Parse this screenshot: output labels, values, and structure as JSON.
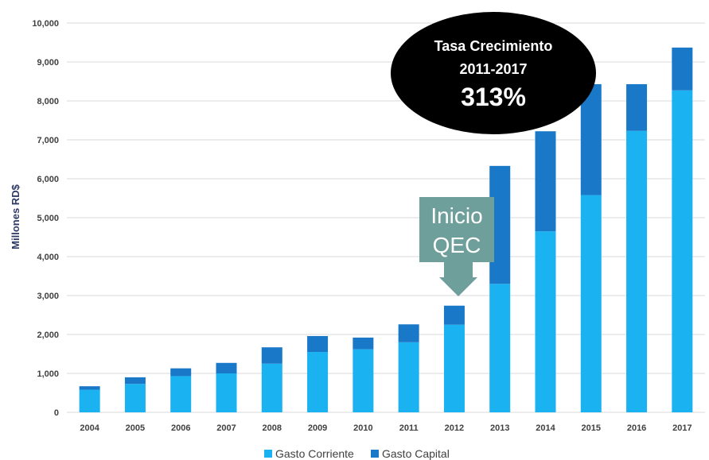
{
  "chart_data": {
    "type": "bar",
    "stacked": true,
    "ylabel": "Millones RD$",
    "ylim": [
      0,
      10000
    ],
    "yticks": [
      "0",
      "1,000",
      "2,000",
      "3,000",
      "4,000",
      "5,000",
      "6,000",
      "7,000",
      "8,000",
      "9,000",
      "10,000"
    ],
    "ytick_values": [
      0,
      1000,
      2000,
      3000,
      4000,
      5000,
      6000,
      7000,
      8000,
      9000,
      10000
    ],
    "grid": true,
    "legend_position": "bottom",
    "categories": [
      "2004",
      "2005",
      "2006",
      "2007",
      "2008",
      "2009",
      "2010",
      "2011",
      "2012",
      "2013",
      "2014",
      "2015",
      "2016",
      "2017"
    ],
    "series": [
      {
        "name": "Gasto Corriente",
        "color": "#1ab2f0",
        "values": [
          580,
          730,
          930,
          1000,
          1250,
          1550,
          1620,
          1800,
          2250,
          3300,
          4650,
          5580,
          7230,
          8270
        ]
      },
      {
        "name": "Gasto Capital",
        "color": "#1a78c8",
        "values": [
          90,
          170,
          200,
          270,
          420,
          410,
          300,
          460,
          490,
          3030,
          2570,
          2850,
          1200,
          1100
        ]
      }
    ],
    "annotations": {
      "bubble": {
        "line1": "Tasa Crecimiento",
        "line2": "2011-2017",
        "line3": "313%"
      },
      "arrow": {
        "line1": "Inicio",
        "line2": "QEC",
        "target_category": "2012"
      }
    }
  }
}
